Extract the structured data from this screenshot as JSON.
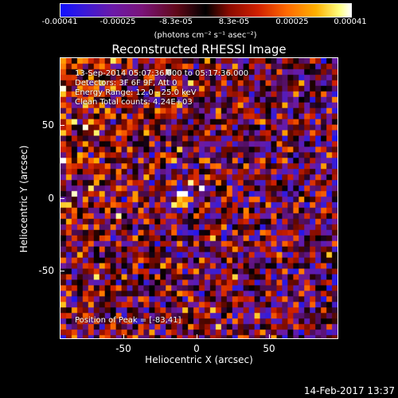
{
  "colorbar": {
    "ticks": [
      "-0.00041",
      "-0.00025",
      "-8.3e-05",
      "8.3e-05",
      "0.00025",
      "0.00041"
    ],
    "units": "(photons cm⁻² s⁻¹ asec⁻²)",
    "range": [
      -0.00041,
      0.00041
    ]
  },
  "chart_data": {
    "type": "heatmap",
    "title": "Reconstructed RHESSI Image",
    "xlabel": "Heliocentric X (arcsec)",
    "ylabel": "Heliocentric Y (arcsec)",
    "xlim": [
      -96,
      96
    ],
    "ylim": [
      -96,
      98
    ],
    "xticks": [
      "-50",
      "0",
      "50"
    ],
    "yticks": [
      "50",
      "0",
      "-50"
    ],
    "peak": [
      -83,
      41
    ],
    "annotations": {
      "time": "13-Sep-2014 05:07:36.000 to 05:17:36.000",
      "detectors": "Detectors: 3F 6F 9F, Att 0",
      "energy": "Energy Range: 12.0 - 25.0 keV",
      "clean": "Clean     Total counts: 4.24E+03",
      "peak_label": "Position of Peak = [-83,41]"
    }
  },
  "footer": {
    "timestamp": "14-Feb-2017 13:37"
  }
}
